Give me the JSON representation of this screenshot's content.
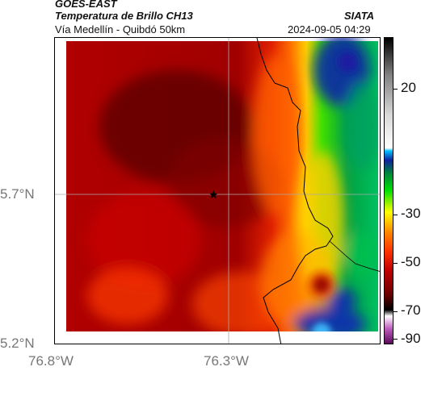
{
  "header": {
    "org": "GOES-EAST",
    "product": "Temperatura de Brillo CH13",
    "brand": "SIATA",
    "region": "Vía Medellín - Quibdó 50km",
    "datetime": "2024-09-05 04:29"
  },
  "axes": {
    "lat_labels": [
      "5.7°N",
      "5.2°N"
    ],
    "lon_labels": [
      "76.8°W",
      "76.3°W"
    ]
  },
  "colorbar": {
    "ticks": [
      "20",
      "-30",
      "-50",
      "-70",
      "-90"
    ],
    "colors": [
      "#5a0a5a",
      "#c060c0",
      "#ffffff",
      "#000000",
      "#6b0000",
      "#c00000",
      "#ff3000",
      "#ff8000",
      "#ffff00",
      "#00e000",
      "#008040",
      "#1020a0",
      "#00c0ff",
      "#ffffff",
      "#c0c0c0",
      "#000000"
    ]
  },
  "map": {
    "marker": "star-icon",
    "palette": {
      "land": "#b30000",
      "dark": "#5a0000",
      "ridge": "#ff6a00",
      "green": "#00c040",
      "blue": "#1a2aa8"
    }
  }
}
